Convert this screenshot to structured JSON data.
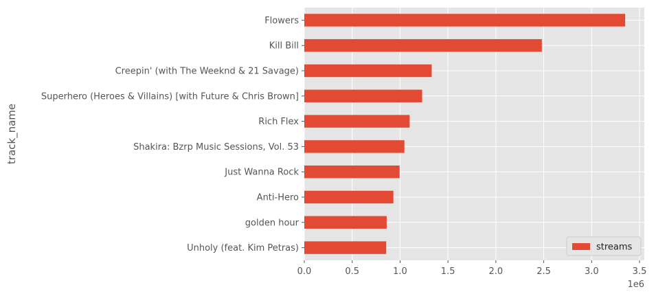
{
  "chart_data": {
    "type": "bar",
    "orientation": "horizontal",
    "categories": [
      "Flowers",
      "Kill Bill",
      "Creepin' (with The Weeknd & 21 Savage)",
      "Superhero (Heroes & Villains) [with Future & Chris Brown]",
      "Rich Flex",
      "Shakira: Bzrp Music Sessions, Vol. 53",
      "Just Wanna Rock",
      "Anti-Hero",
      "golden hour",
      "Unholy (feat. Kim Petras)"
    ],
    "series": [
      {
        "name": "streams",
        "values": [
          3350000,
          2480000,
          1330000,
          1230000,
          1100000,
          1045000,
          995000,
          930000,
          860000,
          855000
        ]
      }
    ],
    "xlabel": "",
    "ylabel": "track_name",
    "xlim": [
      0,
      3.55
    ],
    "x_ticks": [
      "0.0",
      "0.5",
      "1.0",
      "1.5",
      "2.0",
      "2.5",
      "3.0",
      "3.5"
    ],
    "x_tick_values": [
      0,
      0.5,
      1.0,
      1.5,
      2.0,
      2.5,
      3.0,
      3.5
    ],
    "x_offset_label": "1e6",
    "scale": 1000000,
    "grid": true,
    "legend_position": "lower-right",
    "colors": {
      "bar": "#E24A33",
      "plot_background": "#E5E5E5",
      "grid": "#FFFFFF",
      "text": "#555555"
    }
  }
}
